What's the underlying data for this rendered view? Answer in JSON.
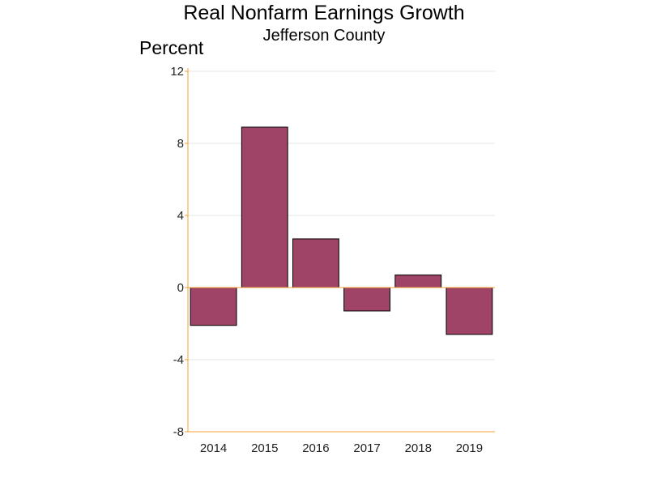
{
  "chart_data": {
    "type": "bar",
    "title": "Real Nonfarm Earnings Growth",
    "subtitle": "Jefferson County",
    "ylabel": "Percent",
    "xlabel": "",
    "categories": [
      "2014",
      "2015",
      "2016",
      "2017",
      "2018",
      "2019"
    ],
    "values": [
      -2.1,
      8.9,
      2.7,
      -1.3,
      0.7,
      -2.6
    ],
    "ylim": [
      -8,
      12
    ],
    "yticks": [
      -8,
      -4,
      0,
      4,
      8,
      12
    ],
    "grid": true,
    "legend": "none"
  },
  "colors": {
    "bar_fill": "#a04467",
    "bar_stroke": "#000000",
    "axis": "#f0a030",
    "grid": "#e4e4e4"
  }
}
